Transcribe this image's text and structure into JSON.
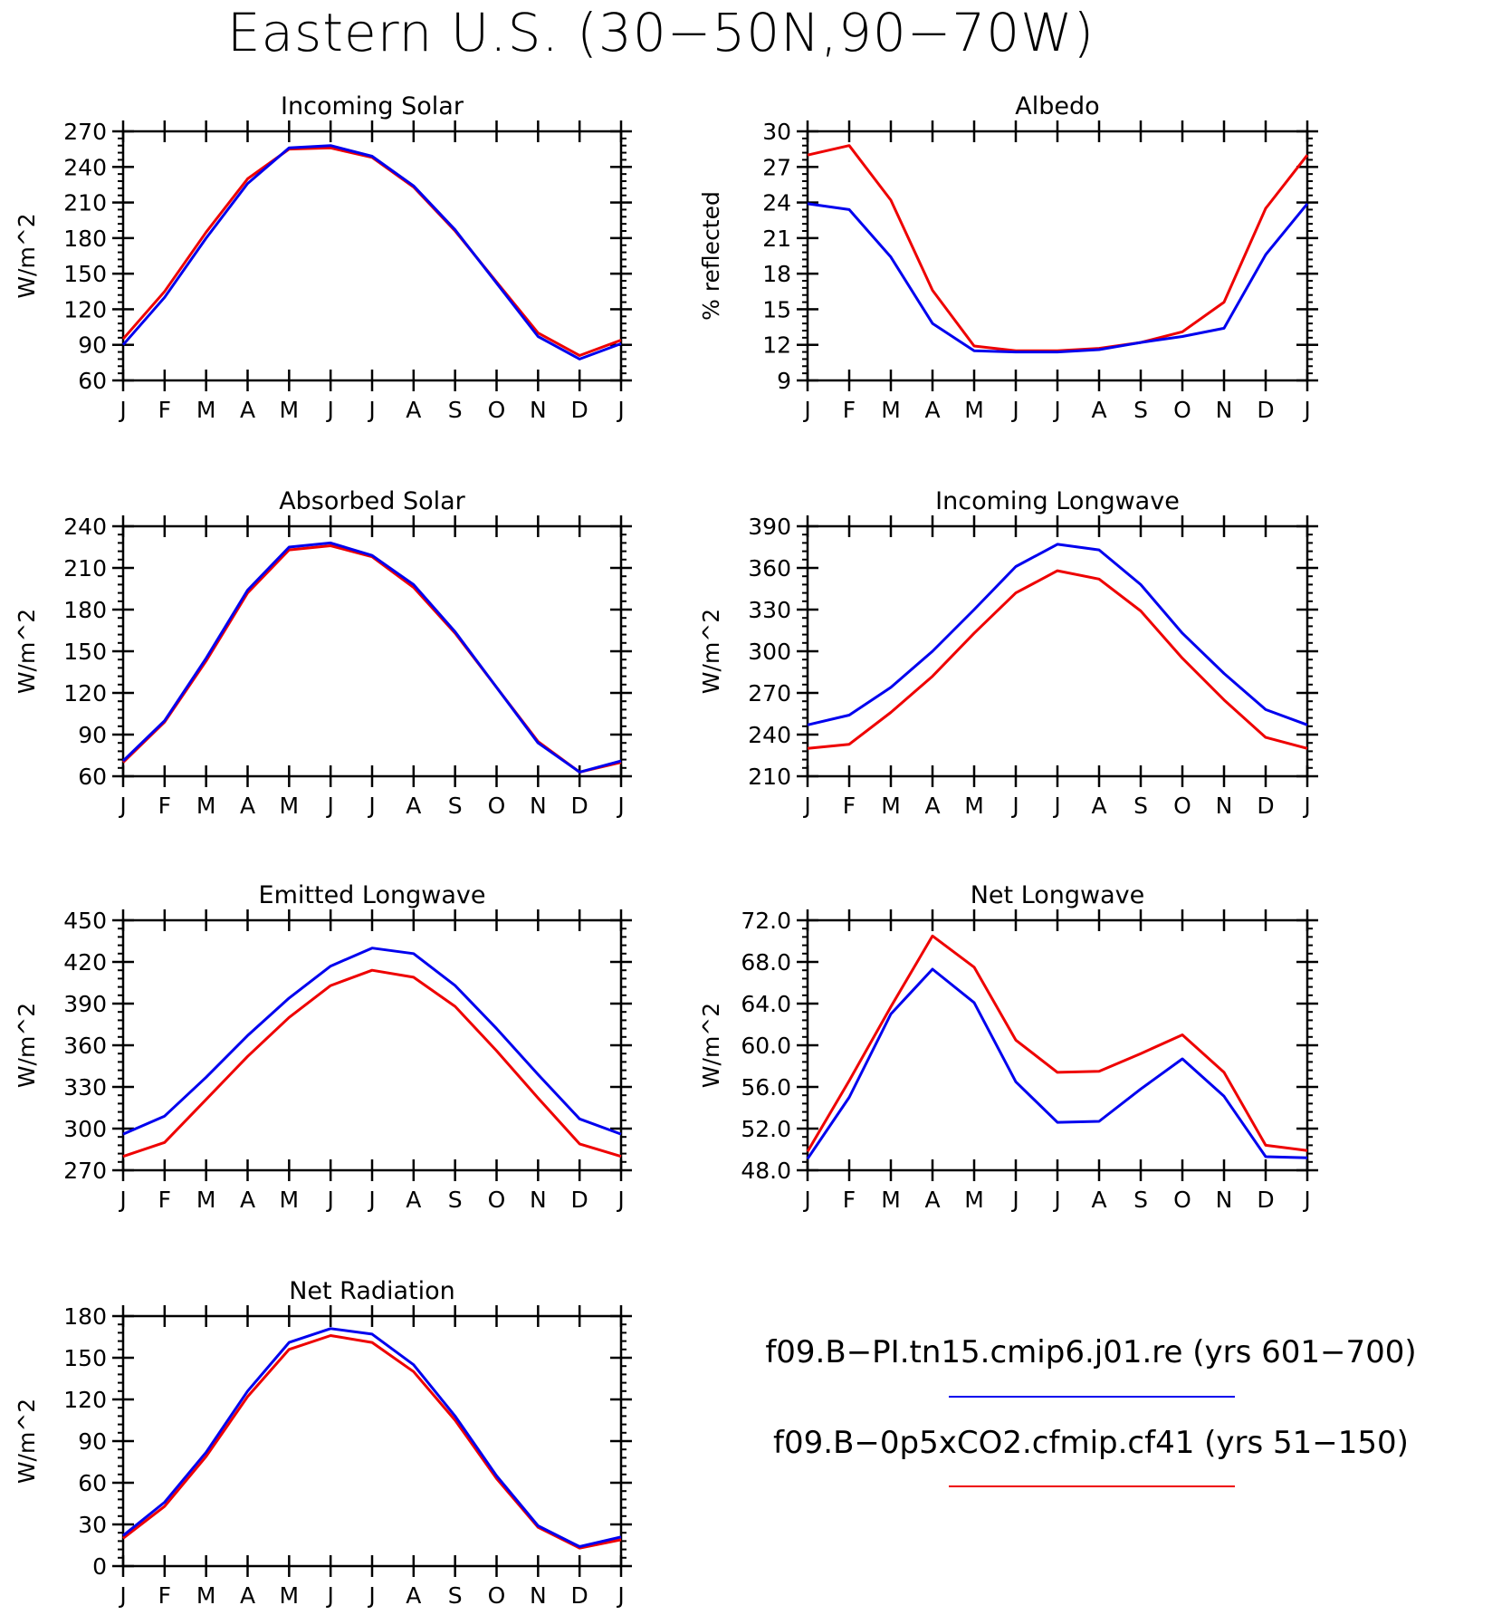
{
  "title": "Eastern U.S. (30−50N,90−70W)",
  "colors": {
    "blue": "#0000ee",
    "red": "#ee0000"
  },
  "legend": {
    "entries": [
      {
        "label": "f09.B−PI.tn15.cmip6.j01.re (yrs 601−700)",
        "color": "#0000ee"
      },
      {
        "label": "f09.B−0p5xCO2.cfmip.cf41 (yrs 51−150)",
        "color": "#ee0000"
      }
    ]
  },
  "chart_data": [
    {
      "type": "line",
      "title": "Incoming Solar",
      "ylabel": "W/m^2",
      "xlabel": "",
      "categories": [
        "J",
        "F",
        "M",
        "A",
        "M",
        "J",
        "J",
        "A",
        "S",
        "O",
        "N",
        "D",
        "J"
      ],
      "ylim": [
        60,
        270
      ],
      "yticks": [
        "60",
        "90",
        "120",
        "150",
        "180",
        "210",
        "240",
        "270"
      ],
      "series": [
        {
          "color": "#ee0000",
          "values": [
            95,
            135,
            185,
            230,
            255,
            256,
            248,
            223,
            186,
            143,
            100,
            81,
            94
          ]
        },
        {
          "color": "#0000ee",
          "values": [
            90,
            130,
            180,
            226,
            256,
            258,
            249,
            224,
            187,
            142,
            97,
            78,
            91
          ]
        }
      ]
    },
    {
      "type": "line",
      "title": "Albedo",
      "ylabel": "% reflected",
      "xlabel": "",
      "categories": [
        "J",
        "F",
        "M",
        "A",
        "M",
        "J",
        "J",
        "A",
        "S",
        "O",
        "N",
        "D",
        "J"
      ],
      "ylim": [
        9,
        30
      ],
      "yticks": [
        "9",
        "12",
        "15",
        "18",
        "21",
        "24",
        "27",
        "30"
      ],
      "series": [
        {
          "color": "#ee0000",
          "values": [
            28.0,
            28.8,
            24.2,
            16.6,
            11.9,
            11.5,
            11.5,
            11.7,
            12.2,
            13.1,
            15.6,
            23.5,
            28.0
          ]
        },
        {
          "color": "#0000ee",
          "values": [
            23.9,
            23.4,
            19.4,
            13.8,
            11.5,
            11.4,
            11.4,
            11.6,
            12.2,
            12.7,
            13.4,
            19.6,
            23.9
          ]
        }
      ]
    },
    {
      "type": "line",
      "title": "Absorbed Solar",
      "ylabel": "W/m^2",
      "xlabel": "",
      "categories": [
        "J",
        "F",
        "M",
        "A",
        "M",
        "J",
        "J",
        "A",
        "S",
        "O",
        "N",
        "D",
        "J"
      ],
      "ylim": [
        60,
        240
      ],
      "yticks": [
        "60",
        "90",
        "120",
        "150",
        "180",
        "210",
        "240"
      ],
      "series": [
        {
          "color": "#ee0000",
          "values": [
            70,
            99,
            143,
            192,
            223,
            226,
            218,
            196,
            163,
            124,
            85,
            63,
            70
          ]
        },
        {
          "color": "#0000ee",
          "values": [
            71,
            100,
            145,
            194,
            225,
            228,
            219,
            198,
            164,
            124,
            84,
            63,
            71
          ]
        }
      ]
    },
    {
      "type": "line",
      "title": "Incoming Longwave",
      "ylabel": "W/m^2",
      "xlabel": "",
      "categories": [
        "J",
        "F",
        "M",
        "A",
        "M",
        "J",
        "J",
        "A",
        "S",
        "O",
        "N",
        "D",
        "J"
      ],
      "ylim": [
        210,
        390
      ],
      "yticks": [
        "210",
        "240",
        "270",
        "300",
        "330",
        "360",
        "390"
      ],
      "series": [
        {
          "color": "#ee0000",
          "values": [
            230,
            233,
            256,
            282,
            313,
            342,
            358,
            352,
            329,
            295,
            265,
            238,
            230
          ]
        },
        {
          "color": "#0000ee",
          "values": [
            247,
            254,
            274,
            300,
            330,
            361,
            377,
            373,
            348,
            313,
            284,
            258,
            247
          ]
        }
      ]
    },
    {
      "type": "line",
      "title": "Emitted Longwave",
      "ylabel": "W/m^2",
      "xlabel": "",
      "categories": [
        "J",
        "F",
        "M",
        "A",
        "M",
        "J",
        "J",
        "A",
        "S",
        "O",
        "N",
        "D",
        "J"
      ],
      "ylim": [
        270,
        450
      ],
      "yticks": [
        "270",
        "300",
        "330",
        "360",
        "390",
        "420",
        "450"
      ],
      "series": [
        {
          "color": "#ee0000",
          "values": [
            280,
            290,
            321,
            352,
            380,
            403,
            414,
            409,
            388,
            356,
            322,
            289,
            280
          ]
        },
        {
          "color": "#0000ee",
          "values": [
            296,
            309,
            337,
            367,
            394,
            417,
            430,
            426,
            403,
            372,
            339,
            307,
            296
          ]
        }
      ]
    },
    {
      "type": "line",
      "title": "Net Longwave",
      "ylabel": "W/m^2",
      "xlabel": "",
      "categories": [
        "J",
        "F",
        "M",
        "A",
        "M",
        "J",
        "J",
        "A",
        "S",
        "O",
        "N",
        "D",
        "J"
      ],
      "ylim": [
        48,
        72
      ],
      "yticks": [
        "48.0",
        "52.0",
        "56.0",
        "60.0",
        "64.0",
        "68.0",
        "72.0"
      ],
      "series": [
        {
          "color": "#ee0000",
          "values": [
            49.8,
            56.6,
            63.7,
            70.5,
            67.5,
            60.5,
            57.4,
            57.5,
            59.2,
            61.0,
            57.4,
            50.4,
            49.9
          ]
        },
        {
          "color": "#0000ee",
          "values": [
            49.1,
            55.0,
            63.0,
            67.3,
            64.1,
            56.5,
            52.6,
            52.7,
            55.8,
            58.7,
            55.1,
            49.3,
            49.2
          ]
        }
      ]
    },
    {
      "type": "line",
      "title": "Net Radiation",
      "ylabel": "W/m^2",
      "xlabel": "",
      "categories": [
        "J",
        "F",
        "M",
        "A",
        "M",
        "J",
        "J",
        "A",
        "S",
        "O",
        "N",
        "D",
        "J"
      ],
      "ylim": [
        0,
        180
      ],
      "yticks": [
        "0",
        "30",
        "60",
        "90",
        "120",
        "150",
        "180"
      ],
      "series": [
        {
          "color": "#ee0000",
          "values": [
            20,
            43,
            79,
            122,
            156,
            166,
            161,
            140,
            105,
            63,
            28,
            13,
            19
          ]
        },
        {
          "color": "#0000ee",
          "values": [
            22,
            46,
            82,
            126,
            161,
            171,
            167,
            145,
            108,
            65,
            29,
            14,
            21
          ]
        }
      ]
    }
  ]
}
